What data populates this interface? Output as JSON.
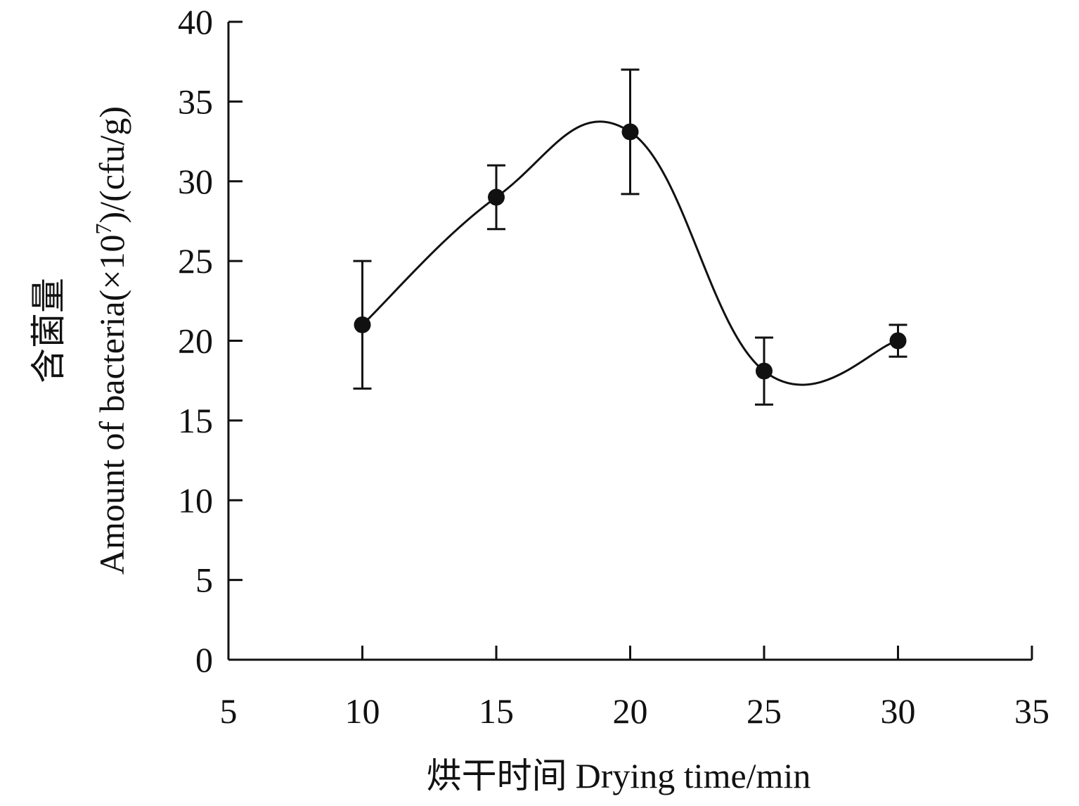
{
  "chart_data": {
    "type": "line",
    "xlabel_parts": {
      "zh": "烘干时间",
      "en": "Drying time/min"
    },
    "ylabel_parts": {
      "zh": "含菌量",
      "en_pre": "Amount of bacteria(×10",
      "en_sup": "7",
      "en_post": ")/(cfu/g)"
    },
    "xlim": [
      5,
      35
    ],
    "ylim": [
      0,
      40
    ],
    "xticks": [
      5,
      10,
      15,
      20,
      25,
      30,
      35
    ],
    "yticks": [
      0,
      5,
      10,
      15,
      20,
      25,
      30,
      35,
      40
    ],
    "grid": false,
    "series": [
      {
        "x": [
          10,
          15,
          20,
          25,
          30
        ],
        "y": [
          21,
          29,
          33.1,
          18.1,
          20
        ],
        "error": [
          4,
          2,
          3.9,
          2.1,
          1
        ]
      }
    ]
  }
}
